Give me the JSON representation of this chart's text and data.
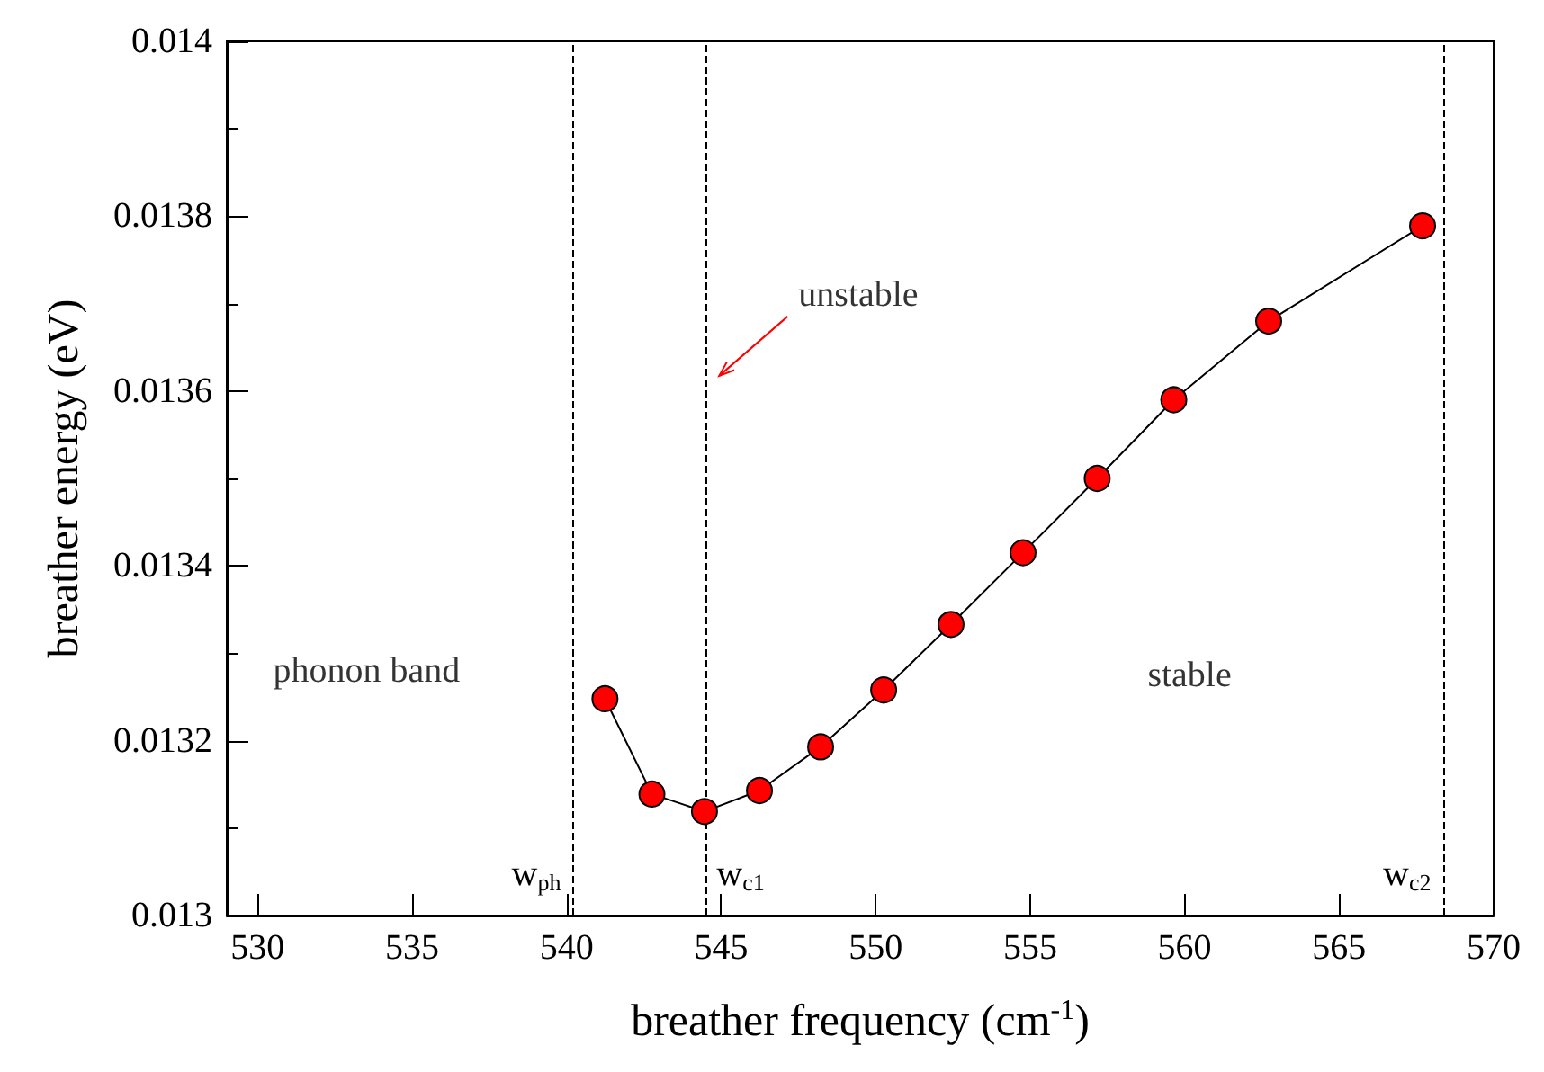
{
  "chart_data": {
    "type": "line",
    "xlabel": "breather frequency (cm$^{-1}$)",
    "ylabel": "breather energy (eV)",
    "x": [
      541.24,
      542.76,
      544.46,
      546.24,
      548.22,
      550.26,
      552.44,
      554.77,
      557.17,
      559.65,
      562.72,
      567.7
    ],
    "series": [
      {
        "color": "#ff0000",
        "values": [
          0.013248,
          0.013139,
          0.013119,
          0.013143,
          0.013193,
          0.013258,
          0.013333,
          0.013415,
          0.0135,
          0.01359,
          0.01368,
          0.013789
        ]
      }
    ],
    "xlim": [
      529,
      570
    ],
    "xticks": [
      530,
      535,
      540,
      545,
      550,
      555,
      560,
      565,
      570
    ],
    "ylim": [
      0.013,
      0.014
    ],
    "yticks": [
      0.013,
      0.0132,
      0.0134,
      0.0136,
      0.0138,
      0.014
    ],
    "marker": "circle",
    "line_style": "solid",
    "grid": false,
    "ref_lines": [
      {
        "axis": "x",
        "value": 540.2,
        "label": "w$_{ph}$",
        "line_style": "dashed"
      },
      {
        "axis": "x",
        "value": 544.5,
        "label": "w$_{c1}$",
        "line_style": "dashed"
      },
      {
        "axis": "x",
        "value": 568.4,
        "label": "w$_{c2}$",
        "line_style": "dashed"
      }
    ],
    "annotations": [
      "phonon band",
      "unstable",
      "stable"
    ]
  }
}
